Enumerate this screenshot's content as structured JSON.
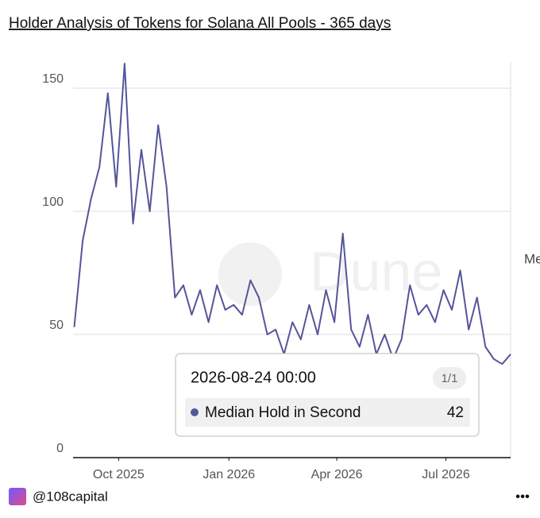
{
  "chart_data": {
    "type": "line",
    "title": "Holder Analysis of Tokens for Solana All Pools - 365 days",
    "x": [
      "2025-08-25",
      "2025-09-01",
      "2025-09-08",
      "2025-09-15",
      "2025-09-22",
      "2025-09-29",
      "2025-10-06",
      "2025-10-13",
      "2025-10-20",
      "2025-10-27",
      "2025-11-03",
      "2025-11-10",
      "2025-11-17",
      "2025-11-24",
      "2025-12-01",
      "2025-12-08",
      "2025-12-15",
      "2025-12-22",
      "2025-12-29",
      "2026-01-05",
      "2026-01-12",
      "2026-01-19",
      "2026-01-26",
      "2026-02-02",
      "2026-02-09",
      "2026-02-16",
      "2026-02-23",
      "2026-03-02",
      "2026-03-09",
      "2026-03-16",
      "2026-03-23",
      "2026-03-30",
      "2026-04-06",
      "2026-04-13",
      "2026-04-20",
      "2026-04-27",
      "2026-05-04",
      "2026-05-11",
      "2026-05-18",
      "2026-05-25",
      "2026-06-01",
      "2026-06-08",
      "2026-06-15",
      "2026-06-22",
      "2026-06-29",
      "2026-07-06",
      "2026-07-13",
      "2026-07-20",
      "2026-07-27",
      "2026-08-03",
      "2026-08-10",
      "2026-08-17",
      "2026-08-24"
    ],
    "series": [
      {
        "name": "Median Hold in Second",
        "color": "#55559a",
        "values": [
          53,
          88,
          105,
          118,
          148,
          110,
          160,
          95,
          125,
          100,
          135,
          110,
          65,
          70,
          58,
          68,
          55,
          70,
          60,
          62,
          58,
          72,
          65,
          50,
          52,
          42,
          55,
          48,
          62,
          50,
          68,
          55,
          91,
          52,
          45,
          58,
          42,
          50,
          40,
          48,
          70,
          58,
          62,
          55,
          68,
          60,
          76,
          52,
          65,
          45,
          40,
          38,
          42
        ]
      }
    ],
    "xlim": [
      "2025-08-24",
      "2026-08-24"
    ],
    "xticks": [
      {
        "value": "2025-10-01",
        "label": "Oct 2025"
      },
      {
        "value": "2026-01-01",
        "label": "Jan 2026"
      },
      {
        "value": "2026-04-01",
        "label": "Apr 2026"
      },
      {
        "value": "2026-07-01",
        "label": "Jul 2026"
      }
    ],
    "ylim": [
      0,
      160
    ],
    "yticks": [
      0,
      50,
      100,
      150
    ],
    "grid": true,
    "tooltip": {
      "date": "2026-08-24 00:00",
      "page": "1/1"
    },
    "watermark": "Dune",
    "footer": {
      "handle": "@108capital",
      "menu": "•••"
    }
  }
}
